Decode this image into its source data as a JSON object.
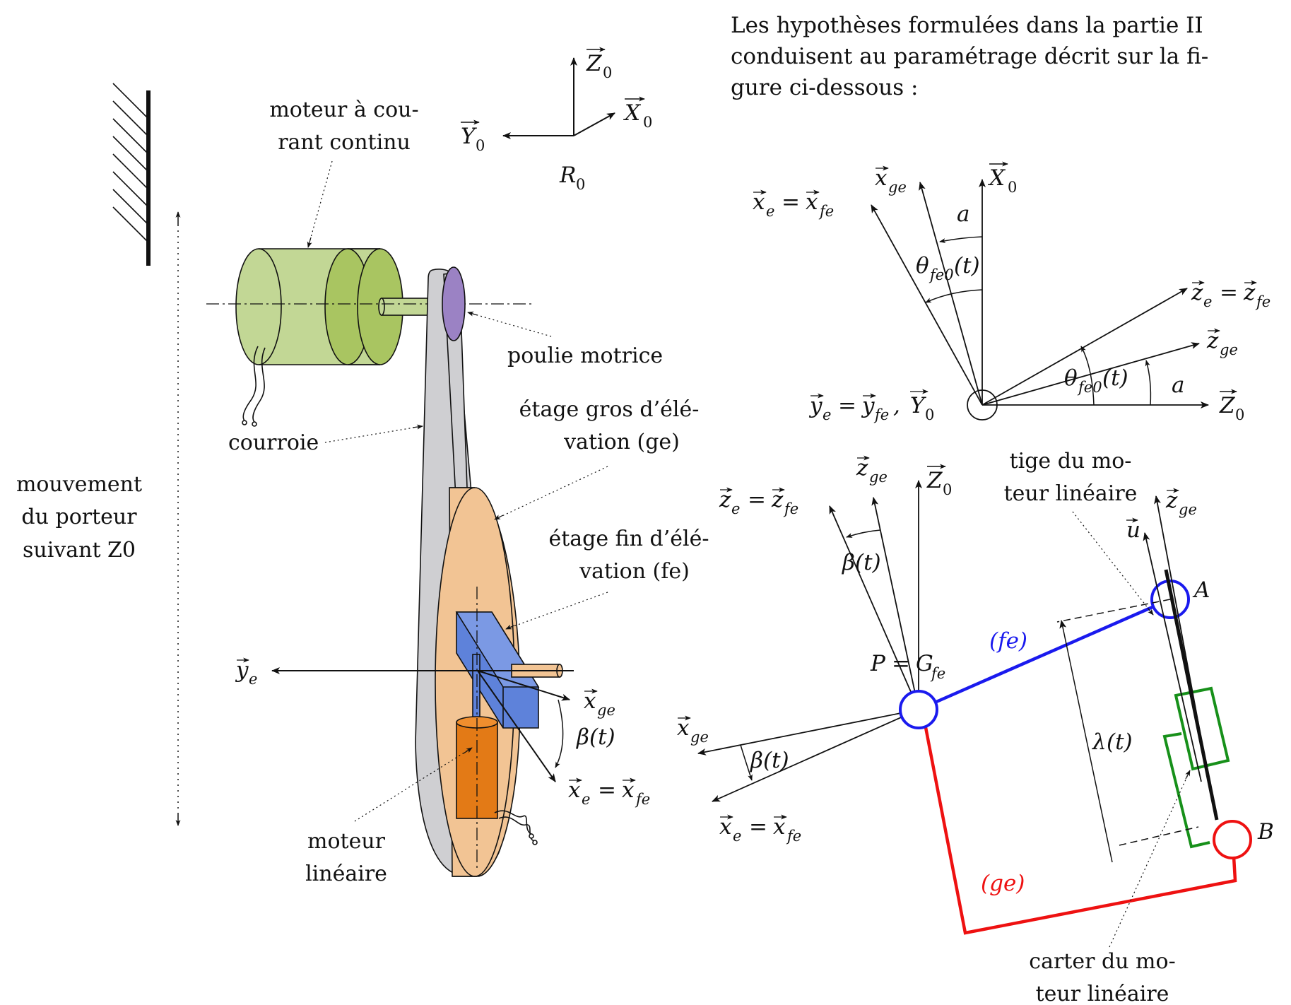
{
  "intro": {
    "line1": "Les hypothèses formulées dans la partie II",
    "line2": "conduisent au paramétrage décrit sur la fi-",
    "line3": "gure ci-dessous :"
  },
  "labels": {
    "moteur_cc_1": "moteur à cou-",
    "moteur_cc_2": "rant continu",
    "poulie": "poulie motrice",
    "courroie": "courroie",
    "ge_1": "étage gros d’élé-",
    "ge_2": "vation (ge)",
    "fe_1": "étage fin d’élé-",
    "fe_2": "vation (fe)",
    "mouv_1": "mouvement",
    "mouv_2": "du porteur",
    "mouv_3": "suivant Z0",
    "moteur_lin_1": "moteur",
    "moteur_lin_2": "linéaire",
    "tige_1": "tige du mo-",
    "tige_2": "teur linéaire",
    "carter_1": "carter du mo-",
    "carter_2": "teur linéaire"
  },
  "symbols": {
    "Z0": "Z",
    "X0": "X",
    "Y0": "Y",
    "R0": "R",
    "zero": "0",
    "xe_eq_xfe": "x",
    "eq": "=",
    "xge": "x",
    "ze_eq_zfe": "z",
    "zge": "z",
    "ye": "y",
    "ye_eq_yfe": "y",
    "theta": "θ",
    "fe0": "fe0",
    "t_paren": "(t)",
    "a": "a",
    "beta": "β",
    "lambda": "λ",
    "u": "u",
    "A": "A",
    "B": "B",
    "P": "P",
    "G": "G",
    "fe_sub": "fe",
    "ge_sub": "ge",
    "e_sub": "e",
    "fe_paren": "(fe)",
    "ge_paren": "(ge)",
    "comma": ","
  },
  "colors": {
    "motor_green": "#c2d795",
    "motor_green_dark": "#a9c561",
    "pulley_purple": "#9b82c4",
    "belt_gray": "#cfcfd2",
    "disc_orange": "#f2c494",
    "block_blue": "#5e82da",
    "motor_orange": "#e37a16",
    "fe_blue": "#1a1aee",
    "ge_red": "#ee1111",
    "carter_green": "#17901a"
  }
}
